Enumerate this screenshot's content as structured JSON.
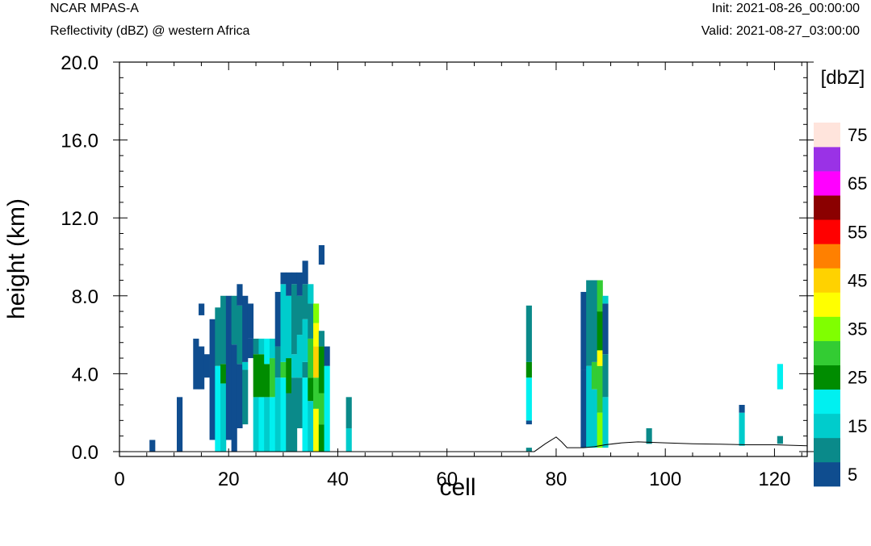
{
  "header": {
    "model": "NCAR MPAS-A",
    "subtitle": "Reflectivity (dBZ) @ western Africa",
    "init": "Init: 2021-08-26_00:00:00",
    "valid": "Valid: 2021-08-27_03:00:00"
  },
  "chart_data": {
    "type": "heatmap",
    "xlabel": "cell",
    "ylabel": "height (km)",
    "xlim": [
      0,
      126
    ],
    "ylim": [
      -0.25,
      20.0
    ],
    "x_ticks": [
      "0",
      "20",
      "40",
      "60",
      "80",
      "100",
      "120"
    ],
    "y_ticks": [
      "0.0",
      "4.0",
      "8.0",
      "12.0",
      "16.0",
      "20.0"
    ],
    "colorbar": {
      "unit": "[dbZ]",
      "levels": [
        5,
        10,
        15,
        20,
        25,
        30,
        35,
        40,
        45,
        50,
        55,
        60,
        65,
        70,
        75
      ],
      "tick_labels": [
        "5",
        "15",
        "25",
        "35",
        "45",
        "55",
        "65",
        "75"
      ],
      "colors": [
        "#0f4d8f",
        "#0a8a8a",
        "#00cccc",
        "#00f0f0",
        "#008c00",
        "#33cc33",
        "#80ff00",
        "#ffff00",
        "#ffd200",
        "#ff8000",
        "#ff0000",
        "#8b0000",
        "#ff00ff",
        "#9a32e6",
        "#ffe4dc"
      ]
    },
    "columns": [
      {
        "x": 6,
        "cells": [
          [
            0,
            0.6,
            5
          ]
        ]
      },
      {
        "x": 11,
        "cells": [
          [
            0,
            2.8,
            5
          ]
        ]
      },
      {
        "x": 14,
        "cells": [
          [
            3.2,
            5.8,
            5
          ]
        ]
      },
      {
        "x": 15,
        "cells": [
          [
            3.2,
            5.4,
            5
          ],
          [
            7.0,
            7.6,
            5
          ]
        ]
      },
      {
        "x": 16,
        "cells": [
          [
            3.8,
            5.0,
            5
          ]
        ]
      },
      {
        "x": 17,
        "cells": [
          [
            0.6,
            6.8,
            5
          ]
        ]
      },
      {
        "x": 18,
        "cells": [
          [
            0,
            4.4,
            20
          ],
          [
            4.4,
            7.4,
            10
          ]
        ]
      },
      {
        "x": 19,
        "cells": [
          [
            0,
            3.5,
            15
          ],
          [
            3.5,
            4.5,
            25
          ],
          [
            4.5,
            8.0,
            10
          ]
        ]
      },
      {
        "x": 20,
        "cells": [
          [
            0.6,
            8.0,
            5
          ]
        ]
      },
      {
        "x": 21,
        "cells": [
          [
            0,
            5.5,
            5
          ],
          [
            5.5,
            8.0,
            10
          ]
        ]
      },
      {
        "x": 22,
        "cells": [
          [
            1.2,
            4.5,
            5
          ],
          [
            4.5,
            7.5,
            10
          ],
          [
            7.5,
            8.6,
            5
          ]
        ]
      },
      {
        "x": 23,
        "cells": [
          [
            1.4,
            4.2,
            10
          ],
          [
            4.2,
            4.6,
            15
          ],
          [
            4.6,
            8.0,
            5
          ]
        ]
      },
      {
        "x": 24,
        "cells": [
          [
            4.8,
            5.8,
            5
          ],
          [
            5.8,
            7.6,
            5
          ]
        ]
      },
      {
        "x": 25,
        "cells": [
          [
            0,
            2.8,
            15
          ],
          [
            2.8,
            5.0,
            25
          ],
          [
            5.0,
            5.8,
            10
          ]
        ]
      },
      {
        "x": 26,
        "cells": [
          [
            0,
            2.8,
            20
          ],
          [
            2.8,
            5.0,
            25
          ],
          [
            5.0,
            5.8,
            15
          ]
        ]
      },
      {
        "x": 27,
        "cells": [
          [
            0,
            2.8,
            15
          ],
          [
            2.8,
            4.5,
            25
          ],
          [
            4.5,
            5.8,
            20
          ]
        ]
      },
      {
        "x": 28,
        "cells": [
          [
            0,
            2.8,
            20
          ],
          [
            2.8,
            4.8,
            30
          ],
          [
            4.8,
            5.8,
            15
          ]
        ]
      },
      {
        "x": 29,
        "cells": [
          [
            0,
            3.8,
            15
          ],
          [
            3.8,
            5.4,
            10
          ],
          [
            5.4,
            8.2,
            5
          ]
        ]
      },
      {
        "x": 30,
        "cells": [
          [
            0,
            3.8,
            20
          ],
          [
            3.8,
            4.6,
            30
          ],
          [
            4.6,
            8.6,
            15
          ],
          [
            8.6,
            9.2,
            5
          ]
        ]
      },
      {
        "x": 31,
        "cells": [
          [
            0,
            3.0,
            10
          ],
          [
            3.0,
            4.8,
            25
          ],
          [
            4.8,
            8.0,
            15
          ],
          [
            8.0,
            9.2,
            5
          ]
        ]
      },
      {
        "x": 32,
        "cells": [
          [
            0,
            3.8,
            10
          ],
          [
            3.8,
            5.0,
            15
          ],
          [
            5.0,
            8.6,
            10
          ],
          [
            8.6,
            9.2,
            5
          ]
        ]
      },
      {
        "x": 33,
        "cells": [
          [
            1.2,
            3.8,
            10
          ],
          [
            3.8,
            6.0,
            15
          ],
          [
            6.0,
            8.0,
            10
          ],
          [
            8.0,
            9.2,
            5
          ]
        ]
      },
      {
        "x": 34,
        "cells": [
          [
            0,
            3.8,
            20
          ],
          [
            3.8,
            4.6,
            10
          ],
          [
            4.6,
            6.8,
            15
          ],
          [
            6.8,
            8.6,
            10
          ],
          [
            8.6,
            9.8,
            5
          ]
        ]
      },
      {
        "x": 35,
        "cells": [
          [
            0,
            2.6,
            15
          ],
          [
            2.6,
            3.8,
            25
          ],
          [
            3.8,
            5.8,
            30
          ],
          [
            5.8,
            7.6,
            10
          ],
          [
            7.6,
            8.6,
            15
          ]
        ]
      },
      {
        "x": 36,
        "cells": [
          [
            0,
            2.2,
            40
          ],
          [
            2.2,
            3.8,
            30
          ],
          [
            3.8,
            5.4,
            45
          ],
          [
            5.4,
            6.6,
            40
          ],
          [
            6.6,
            7.6,
            35
          ]
        ]
      },
      {
        "x": 37,
        "cells": [
          [
            0,
            1.4,
            25
          ],
          [
            1.4,
            3.0,
            30
          ],
          [
            3.0,
            5.4,
            25
          ],
          [
            5.4,
            6.2,
            10
          ],
          [
            9.6,
            10.6,
            5
          ]
        ]
      },
      {
        "x": 38,
        "cells": [
          [
            0,
            4.4,
            20
          ],
          [
            4.4,
            5.4,
            5
          ]
        ]
      },
      {
        "x": 42,
        "cells": [
          [
            0,
            1.2,
            15
          ],
          [
            1.2,
            2.8,
            10
          ]
        ]
      },
      {
        "x": 75,
        "cells": [
          [
            0,
            0.2,
            10
          ],
          [
            1.4,
            1.6,
            5
          ],
          [
            1.6,
            3.8,
            20
          ],
          [
            3.8,
            4.6,
            25
          ],
          [
            4.6,
            7.5,
            10
          ]
        ]
      },
      {
        "x": 85,
        "cells": [
          [
            0.2,
            4.2,
            5
          ],
          [
            4.2,
            8.2,
            5
          ]
        ]
      },
      {
        "x": 86,
        "cells": [
          [
            0.2,
            4.4,
            15
          ],
          [
            4.4,
            8.8,
            10
          ]
        ]
      },
      {
        "x": 87,
        "cells": [
          [
            0.2,
            3.2,
            15
          ],
          [
            3.2,
            4.6,
            30
          ],
          [
            4.6,
            8.8,
            10
          ]
        ]
      },
      {
        "x": 88,
        "cells": [
          [
            0.2,
            2.0,
            35
          ],
          [
            2.0,
            4.4,
            30
          ],
          [
            4.4,
            5.2,
            40
          ],
          [
            5.2,
            7.2,
            25
          ],
          [
            7.2,
            8.8,
            30
          ]
        ]
      },
      {
        "x": 89,
        "cells": [
          [
            0.2,
            2.8,
            15
          ],
          [
            2.8,
            5.0,
            10
          ],
          [
            5.0,
            7.6,
            5
          ],
          [
            7.6,
            8.0,
            15
          ]
        ]
      },
      {
        "x": 97,
        "cells": [
          [
            0.4,
            1.2,
            10
          ]
        ]
      },
      {
        "x": 114,
        "cells": [
          [
            0.3,
            2.0,
            15
          ],
          [
            2.0,
            2.4,
            5
          ]
        ]
      },
      {
        "x": 121,
        "cells": [
          [
            0.4,
            0.8,
            10
          ],
          [
            3.2,
            4.5,
            20
          ]
        ]
      }
    ],
    "terrain": [
      [
        0,
        0
      ],
      [
        76,
        0
      ],
      [
        78,
        0.4
      ],
      [
        80,
        0.75
      ],
      [
        81,
        0.5
      ],
      [
        82,
        0.2
      ],
      [
        85,
        0.2
      ],
      [
        87,
        0.25
      ],
      [
        89,
        0.35
      ],
      [
        92,
        0.45
      ],
      [
        95,
        0.5
      ],
      [
        100,
        0.45
      ],
      [
        105,
        0.4
      ],
      [
        110,
        0.38
      ],
      [
        115,
        0.35
      ],
      [
        120,
        0.35
      ],
      [
        126,
        0.3
      ]
    ]
  }
}
